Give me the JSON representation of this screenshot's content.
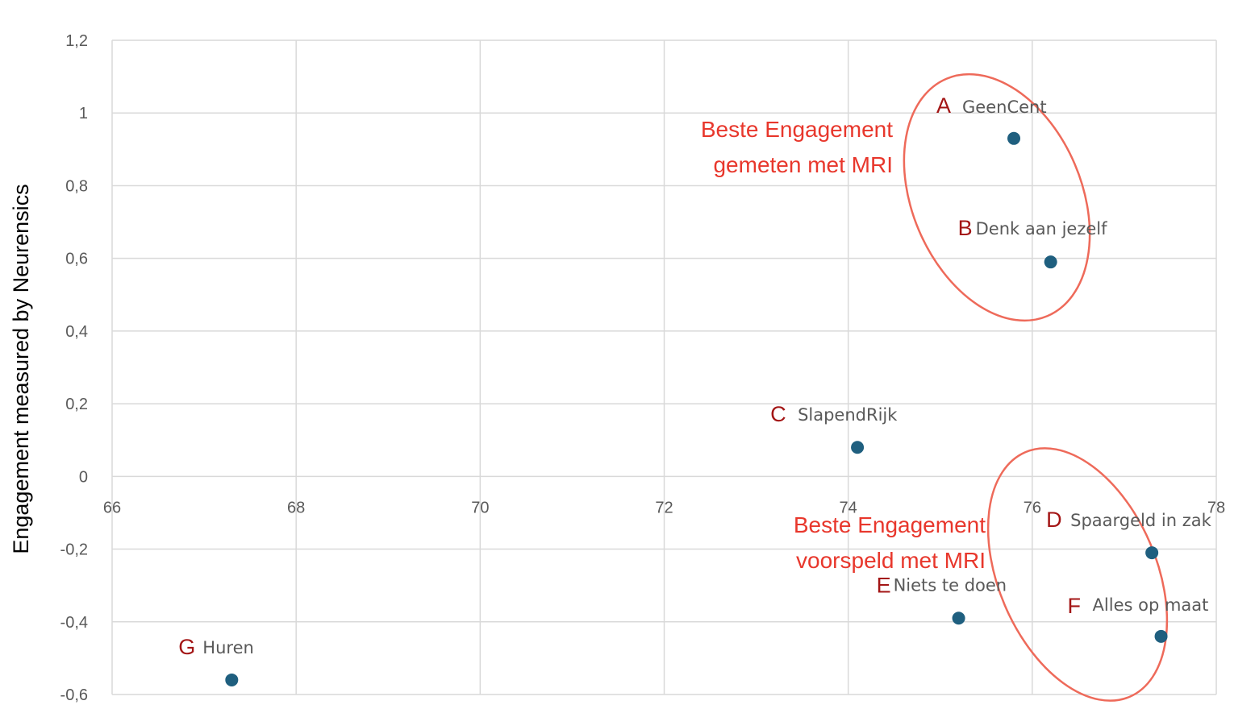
{
  "chart_data": {
    "type": "scatter",
    "title": "",
    "xlabel": "",
    "ylabel": "Engagement measured by Neurensics",
    "xlim": [
      66,
      78
    ],
    "ylim": [
      -0.6,
      1.2
    ],
    "xticks": [
      66,
      68,
      70,
      72,
      74,
      76,
      78
    ],
    "xtick_labels": [
      "66",
      "68",
      "70",
      "72",
      "74",
      "76",
      "78"
    ],
    "yticks": [
      -0.6,
      -0.4,
      -0.2,
      0,
      0.2,
      0.4,
      0.6,
      0.8,
      1,
      1.2
    ],
    "ytick_labels": [
      "-0,6",
      "-0,4",
      "-0,2",
      "0",
      "0,2",
      "0,4",
      "0,6",
      "0,8",
      "1",
      "1,2"
    ],
    "grid": true,
    "marker_color": "#1f5f7f",
    "points": [
      {
        "letter": "A",
        "label": "GeenCent",
        "x": 75.8,
        "y": 0.93
      },
      {
        "letter": "B",
        "label": "Denk aan jezelf",
        "x": 76.2,
        "y": 0.59
      },
      {
        "letter": "C",
        "label": "SlapendRijk",
        "x": 74.1,
        "y": 0.08
      },
      {
        "letter": "D",
        "label": "Spaargeld in zak",
        "x": 77.3,
        "y": -0.21
      },
      {
        "letter": "E",
        "label": "Niets te doen",
        "x": 75.2,
        "y": -0.39
      },
      {
        "letter": "F",
        "label": "Alles op maat",
        "x": 77.4,
        "y": -0.44
      },
      {
        "letter": "G",
        "label": "Huren",
        "x": 67.3,
        "y": -0.56
      }
    ],
    "annotations": [
      {
        "lines": [
          "Beste Engagement",
          "gemeten met MRI"
        ],
        "color": "#e8372c"
      },
      {
        "lines": [
          "Beste Engagement",
          "voorspeld met MRI"
        ],
        "color": "#e8372c"
      }
    ]
  }
}
